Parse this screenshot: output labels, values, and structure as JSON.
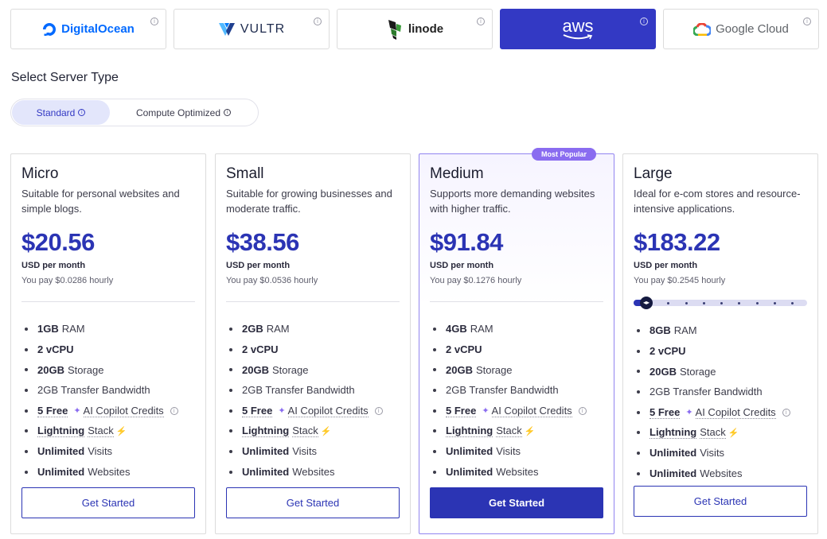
{
  "providers": [
    {
      "name": "DigitalOcean",
      "info_icon": "info-icon"
    },
    {
      "name": "VULTR",
      "info_icon": "info-icon"
    },
    {
      "name": "linode",
      "info_icon": "info-icon"
    },
    {
      "name": "aws",
      "info_icon": "info-icon",
      "active": true
    },
    {
      "name": "Google Cloud",
      "info_icon": "info-icon"
    }
  ],
  "server_type": {
    "title": "Select Server Type",
    "options": [
      {
        "label": "Standard",
        "active": true
      },
      {
        "label": "Compute Optimized",
        "active": false
      }
    ]
  },
  "plans": [
    {
      "name": "Micro",
      "desc": "Suitable for personal websites and simple blogs.",
      "price": "$20.56",
      "unit": "USD per month",
      "hourly": "You pay $0.0286 hourly",
      "features": {
        "ram_b": "1GB",
        "ram": "RAM",
        "cpu": "2 vCPU",
        "storage_b": "20GB",
        "storage": "Storage",
        "bw": "2GB Transfer Bandwidth",
        "credits_b": "5 Free",
        "credits": "AI Copilot Credits",
        "lightning_b": "Lightning",
        "lightning": "Stack",
        "visits_b": "Unlimited",
        "visits": "Visits",
        "sites_b": "Unlimited",
        "sites": "Websites"
      },
      "cta": "Get Started"
    },
    {
      "name": "Small",
      "desc": "Suitable for growing businesses and moderate traffic.",
      "price": "$38.56",
      "unit": "USD per month",
      "hourly": "You pay $0.0536 hourly",
      "features": {
        "ram_b": "2GB",
        "ram": "RAM",
        "cpu": "2 vCPU",
        "storage_b": "20GB",
        "storage": "Storage",
        "bw": "2GB Transfer Bandwidth",
        "credits_b": "5 Free",
        "credits": "AI Copilot Credits",
        "lightning_b": "Lightning",
        "lightning": "Stack",
        "visits_b": "Unlimited",
        "visits": "Visits",
        "sites_b": "Unlimited",
        "sites": "Websites"
      },
      "cta": "Get Started"
    },
    {
      "name": "Medium",
      "badge": "Most Popular",
      "desc": "Supports more demanding websites with higher traffic.",
      "price": "$91.84",
      "unit": "USD per month",
      "hourly": "You pay $0.1276 hourly",
      "features": {
        "ram_b": "4GB",
        "ram": "RAM",
        "cpu": "2 vCPU",
        "storage_b": "20GB",
        "storage": "Storage",
        "bw": "2GB Transfer Bandwidth",
        "credits_b": "5 Free",
        "credits": "AI Copilot Credits",
        "lightning_b": "Lightning",
        "lightning": "Stack",
        "visits_b": "Unlimited",
        "visits": "Visits",
        "sites_b": "Unlimited",
        "sites": "Websites"
      },
      "cta": "Get Started"
    },
    {
      "name": "Large",
      "desc": "Ideal for e-com stores and resource-intensive applications.",
      "price": "$183.22",
      "unit": "USD per month",
      "hourly": "You pay $0.2545 hourly",
      "slider_level": 0,
      "slider_steps": 9,
      "features": {
        "ram_b": "8GB",
        "ram": "RAM",
        "cpu": "2 vCPU",
        "storage_b": "20GB",
        "storage": "Storage",
        "bw": "2GB Transfer Bandwidth",
        "credits_b": "5 Free",
        "credits": "AI Copilot Credits",
        "lightning_b": "Lightning",
        "lightning": "Stack",
        "visits_b": "Unlimited",
        "visits": "Visits",
        "sites_b": "Unlimited",
        "sites": "Websites"
      },
      "cta": "Get Started"
    }
  ],
  "colors": {
    "accent": "#2b34b4",
    "aws_active": "#3339c4",
    "popular_badge": "#8a6cf0"
  }
}
